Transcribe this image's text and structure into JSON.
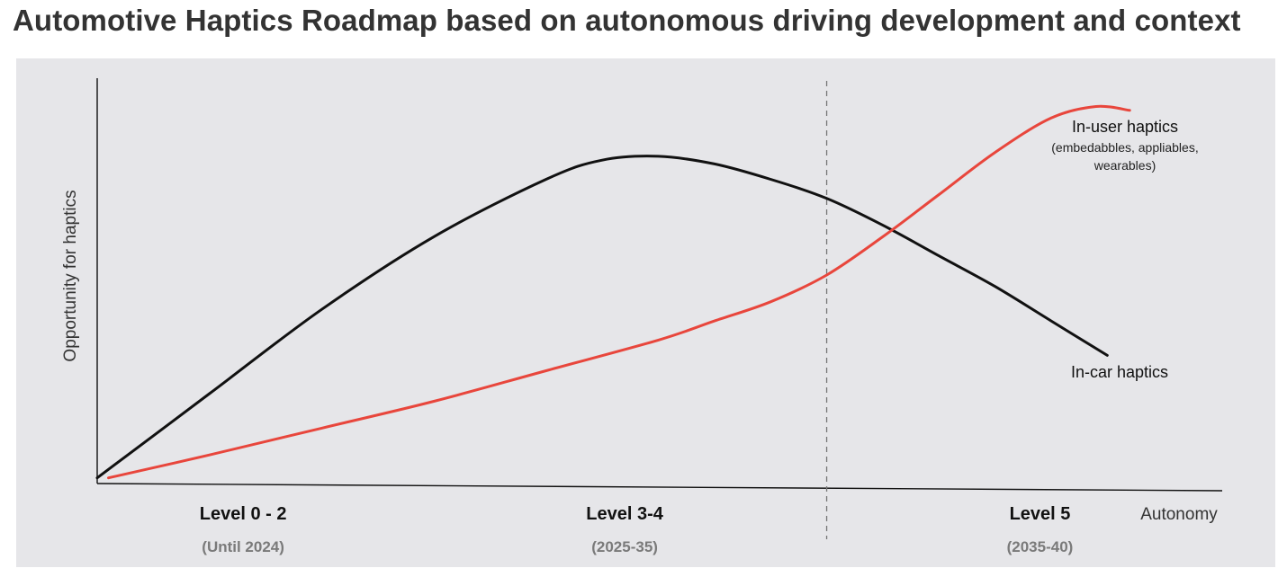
{
  "title": "Automotive Haptics Roadmap based on autonomous driving development and context",
  "colors": {
    "background": "#ffffff",
    "panel": "#e6e6e9",
    "in_car": "#111111",
    "in_user": "#e8463c",
    "label_gray": "#7a7a7a"
  },
  "chart_data": {
    "type": "line",
    "title": "Automotive Haptics Roadmap based on autonomous driving development and context",
    "ylabel": "Opportunity for haptics",
    "xlabel": "Autonomy",
    "x_axis": {
      "min": 0,
      "max": 100
    },
    "y_axis": {
      "min": 0,
      "max": 100
    },
    "grid": false,
    "categories": [
      {
        "label": "Level 0 - 2",
        "sublabel": "(Until 2024)",
        "x": 13
      },
      {
        "label": "Level 3-4",
        "sublabel": "(2025-35)",
        "x": 47
      },
      {
        "label": "Level 5",
        "sublabel": "(2035-40)",
        "x": 84
      }
    ],
    "divider_x": 65,
    "series": [
      {
        "name": "In-car haptics",
        "color": "#111111",
        "x": [
          0,
          10,
          20,
          30,
          40,
          45,
          50,
          55,
          60,
          65,
          70,
          75,
          80,
          85,
          90
        ],
        "y": [
          1,
          23,
          45,
          64,
          79,
          84,
          85,
          83,
          79,
          74,
          67,
          59,
          51,
          42,
          33
        ]
      },
      {
        "name": "In-user haptics",
        "sublabel": "(embedabbles, appliables, wearables)",
        "color": "#e8463c",
        "x": [
          1,
          10,
          20,
          30,
          40,
          50,
          55,
          60,
          65,
          70,
          75,
          80,
          85,
          89,
          92
        ],
        "y": [
          1,
          7,
          14,
          21,
          29,
          37,
          42,
          47,
          54,
          64,
          75,
          86,
          95,
          98,
          97
        ]
      }
    ]
  }
}
